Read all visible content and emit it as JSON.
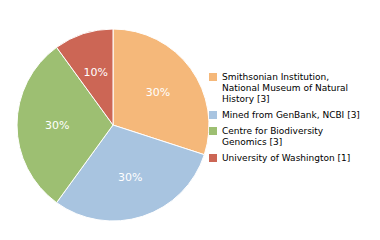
{
  "chart_data": {
    "type": "pie",
    "categories": [
      "Smithsonian Institution,\nNational Museum of Natural\nHistory [3]",
      "Mined from GenBank, NCBI [3]",
      "Centre for Biodiversity\nGenomics [3]",
      "University of Washington [1]"
    ],
    "values": [
      30,
      30,
      30,
      10
    ],
    "value_labels": [
      "30%",
      "30%",
      "30%",
      "10%"
    ],
    "colors": [
      "#F5B87A",
      "#A8C4E0",
      "#9DBF72",
      "#CC6655"
    ],
    "data_labels": true,
    "legend": "right"
  }
}
